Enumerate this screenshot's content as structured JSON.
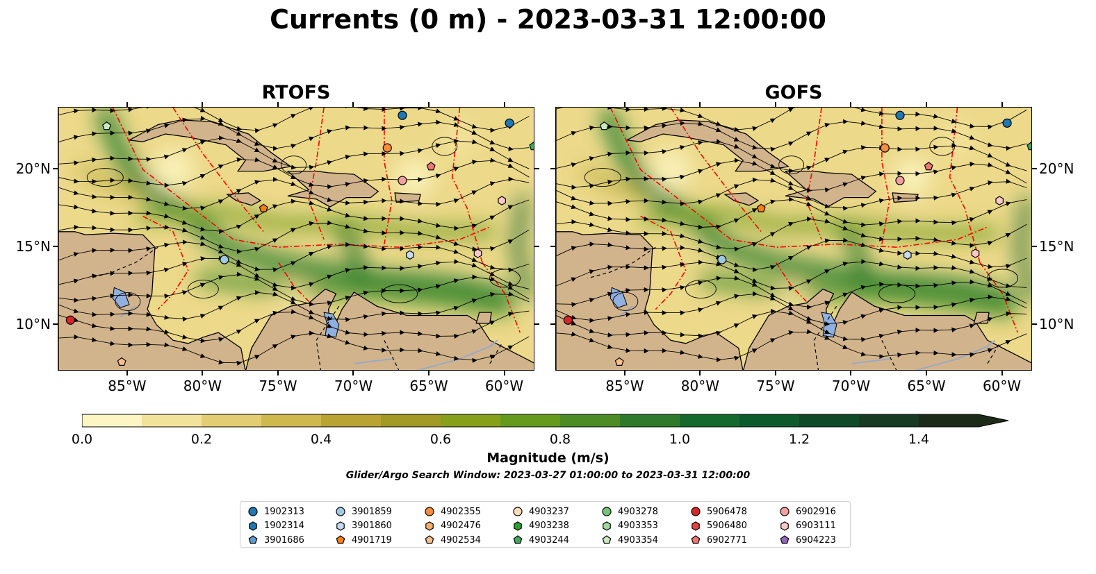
{
  "title": "Currents (0 m) - 2023-03-31 12:00:00",
  "panels": [
    {
      "title": "RTOFS"
    },
    {
      "title": "GOFS"
    }
  ],
  "axes": {
    "x_ticks": [
      "85°W",
      "80°W",
      "75°W",
      "70°W",
      "65°W",
      "60°W"
    ],
    "y_ticks": [
      "20°N",
      "15°N",
      "10°N"
    ]
  },
  "colorbar": {
    "label": "Magnitude (m/s)",
    "ticks": [
      "0.0",
      "0.2",
      "0.4",
      "0.6",
      "0.8",
      "1.0",
      "1.2",
      "1.4"
    ],
    "range": [
      0,
      1.5
    ],
    "extend": "max",
    "colors": [
      "#fdf6c3",
      "#f2e39a",
      "#e2cd72",
      "#cfb84e",
      "#b9a332",
      "#a29a24",
      "#86a01a",
      "#669a1c",
      "#4d8c25",
      "#2f7a2a",
      "#15692e",
      "#0d5a2c",
      "#0e4a28",
      "#173a22",
      "#1c2a18"
    ]
  },
  "search_window": "Glider/Argo Search Window: 2023-03-27 01:00:00 to 2023-03-31 12:00:00",
  "colors": {
    "land": "#d2b48c",
    "lakes": "#8fb0e0",
    "rivers": "#9aa8c8",
    "eez": "#ff0000",
    "streamlines": "#000000"
  },
  "legend": [
    {
      "id": "1902313",
      "marker": "circle",
      "color": "#1f77b4"
    },
    {
      "id": "1902314",
      "marker": "hexagon",
      "color": "#1f77b4"
    },
    {
      "id": "3901686",
      "marker": "pentagon",
      "color": "#5a9bd5"
    },
    {
      "id": "3901859",
      "marker": "circle",
      "color": "#9ecae1"
    },
    {
      "id": "3901860",
      "marker": "hexagon",
      "color": "#c6dbef"
    },
    {
      "id": "4901719",
      "marker": "pentagon",
      "color": "#ff7f0e"
    },
    {
      "id": "4902355",
      "marker": "circle",
      "color": "#fd8d3c"
    },
    {
      "id": "4902476",
      "marker": "hexagon",
      "color": "#fdae6b"
    },
    {
      "id": "4902534",
      "marker": "pentagon",
      "color": "#fdc08c"
    },
    {
      "id": "4903237",
      "marker": "circle",
      "color": "#fddcb8"
    },
    {
      "id": "4903238",
      "marker": "hexagon",
      "color": "#2ca02c"
    },
    {
      "id": "4903244",
      "marker": "pentagon",
      "color": "#41ab5d"
    },
    {
      "id": "4903278",
      "marker": "circle",
      "color": "#74c476"
    },
    {
      "id": "4903353",
      "marker": "hexagon",
      "color": "#a1d99b"
    },
    {
      "id": "4903354",
      "marker": "pentagon",
      "color": "#c7e9c0"
    },
    {
      "id": "5906478",
      "marker": "circle",
      "color": "#d62728"
    },
    {
      "id": "5906480",
      "marker": "hexagon",
      "color": "#e3443f"
    },
    {
      "id": "6902771",
      "marker": "pentagon",
      "color": "#f07672"
    },
    {
      "id": "6902916",
      "marker": "circle",
      "color": "#f4a0a0"
    },
    {
      "id": "6903111",
      "marker": "hexagon",
      "color": "#fcc8c8"
    },
    {
      "id": "6904223",
      "marker": "pentagon",
      "color": "#9467bd"
    }
  ],
  "chart_data": [
    {
      "type": "heatmap",
      "title": "RTOFS",
      "xlabel": "",
      "ylabel": "",
      "xlim": [
        -89.6,
        -58.0
      ],
      "ylim": [
        7.0,
        24.0
      ],
      "x_ticks": [
        -85,
        -80,
        -75,
        -70,
        -65,
        -60
      ],
      "y_ticks": [
        20,
        15,
        10
      ],
      "floats": [
        {
          "id": "1902313",
          "lon": -59.7,
          "lat": 23.0
        },
        {
          "id": "3901859",
          "lon": -78.6,
          "lat": 14.2
        },
        {
          "id": "3901860",
          "lon": -66.3,
          "lat": 14.5
        },
        {
          "id": "4901719",
          "lon": -76.0,
          "lat": 17.5
        },
        {
          "id": "4902355",
          "lon": -67.8,
          "lat": 21.4
        },
        {
          "id": "4902534",
          "lon": -85.4,
          "lat": 7.6
        },
        {
          "id": "4903244",
          "lon": -58.1,
          "lat": 21.5
        },
        {
          "id": "4903354",
          "lon": -86.4,
          "lat": 22.8
        },
        {
          "id": "5906478",
          "lon": -88.8,
          "lat": 10.3
        },
        {
          "id": "6902771",
          "lon": -64.9,
          "lat": 20.2
        },
        {
          "id": "6902916",
          "lon": -66.8,
          "lat": 19.3
        },
        {
          "id": "6903111",
          "lon": -61.8,
          "lat": 14.6
        },
        {
          "id": "6903111",
          "lon": -60.2,
          "lat": 18.0
        },
        {
          "id": "1902313",
          "lon": -66.8,
          "lat": 23.5
        }
      ]
    },
    {
      "type": "heatmap",
      "title": "GOFS",
      "xlabel": "",
      "ylabel": "",
      "xlim": [
        -89.6,
        -58.0
      ],
      "ylim": [
        7.0,
        24.0
      ],
      "x_ticks": [
        -85,
        -80,
        -75,
        -70,
        -65,
        -60
      ],
      "y_ticks": [
        20,
        15,
        10
      ],
      "floats": [
        {
          "id": "1902313",
          "lon": -59.7,
          "lat": 23.0
        },
        {
          "id": "3901859",
          "lon": -78.6,
          "lat": 14.2
        },
        {
          "id": "3901860",
          "lon": -66.3,
          "lat": 14.5
        },
        {
          "id": "4901719",
          "lon": -76.0,
          "lat": 17.5
        },
        {
          "id": "4902355",
          "lon": -67.8,
          "lat": 21.4
        },
        {
          "id": "4902534",
          "lon": -85.4,
          "lat": 7.6
        },
        {
          "id": "4903244",
          "lon": -58.1,
          "lat": 21.5
        },
        {
          "id": "4903354",
          "lon": -86.4,
          "lat": 22.8
        },
        {
          "id": "5906478",
          "lon": -88.8,
          "lat": 10.3
        },
        {
          "id": "6902771",
          "lon": -64.9,
          "lat": 20.2
        },
        {
          "id": "6902916",
          "lon": -66.8,
          "lat": 19.3
        },
        {
          "id": "6903111",
          "lon": -61.8,
          "lat": 14.6
        },
        {
          "id": "6903111",
          "lon": -60.2,
          "lat": 18.0
        },
        {
          "id": "1902313",
          "lon": -66.8,
          "lat": 23.5
        }
      ]
    }
  ]
}
